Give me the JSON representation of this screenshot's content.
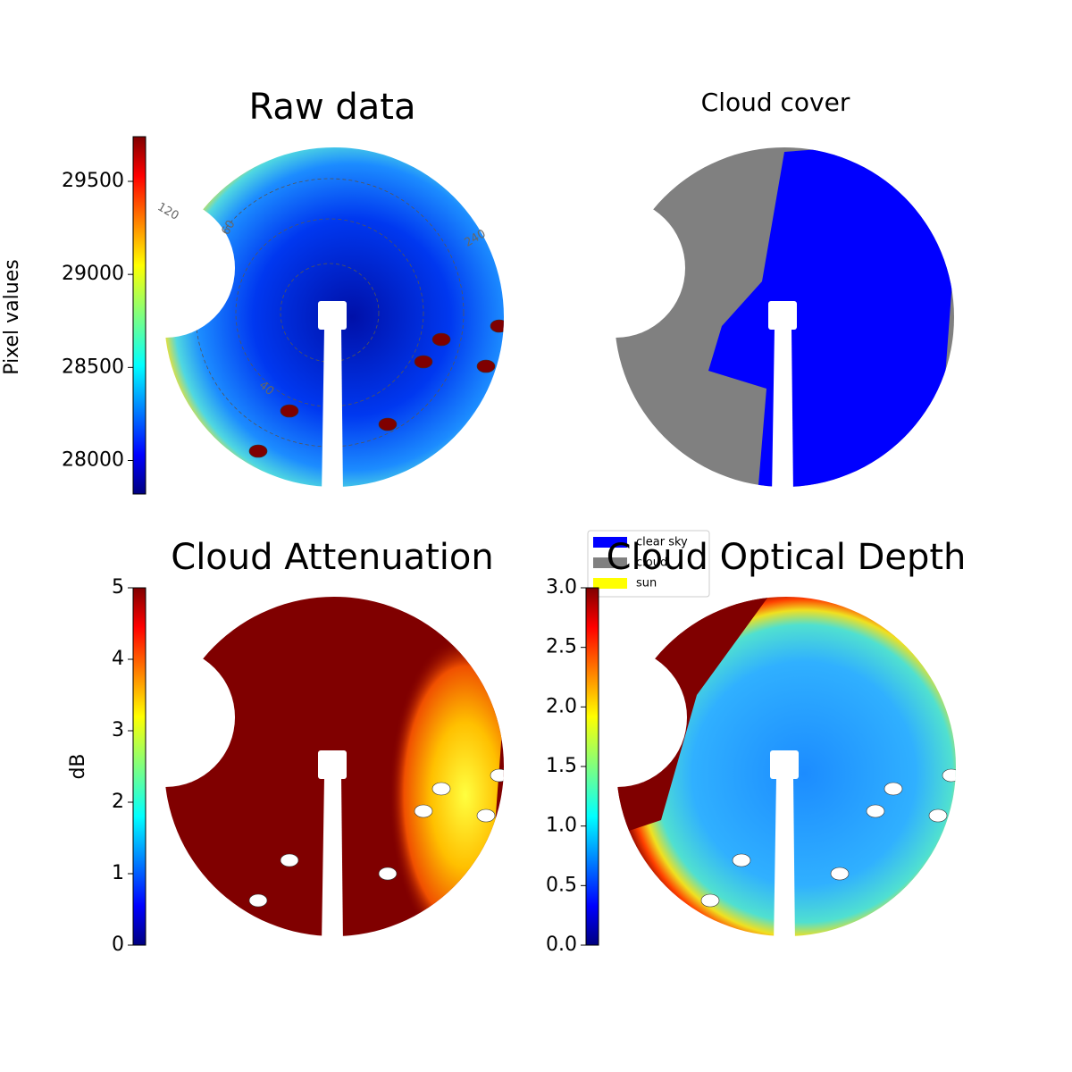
{
  "chart_data": [
    {
      "type": "image",
      "title": "Raw data",
      "colorbar": {
        "label": "Pixel values",
        "lim": [
          27820,
          29740
        ],
        "ticks": [
          28000,
          28500,
          29000,
          29500
        ],
        "colormap": "jet"
      },
      "polar_labels": [
        "120",
        "60",
        "240",
        "40"
      ]
    },
    {
      "type": "image",
      "title": "Cloud cover",
      "series": [
        {
          "name": "clear sky",
          "color": "#0000ff"
        },
        {
          "name": "cloud",
          "color": "#808080"
        },
        {
          "name": "sun",
          "color": "#ffff00"
        }
      ]
    },
    {
      "type": "image",
      "title": "Cloud Attenuation",
      "colorbar": {
        "label": "dB",
        "lim": [
          0,
          5
        ],
        "ticks": [
          0,
          1,
          2,
          3,
          4,
          5
        ],
        "colormap": "jet"
      }
    },
    {
      "type": "image",
      "title": "Cloud Optical Depth",
      "colorbar": {
        "lim": [
          0,
          3
        ],
        "ticks": [
          {
            "value": 0,
            "label": "0.0"
          },
          0.5,
          {
            "value": 1,
            "label": "1.0"
          },
          1.5,
          {
            "value": 2,
            "label": "2.0"
          },
          2.5,
          {
            "value": 3,
            "label": "3.0"
          }
        ],
        "colormap": "jet"
      }
    }
  ]
}
